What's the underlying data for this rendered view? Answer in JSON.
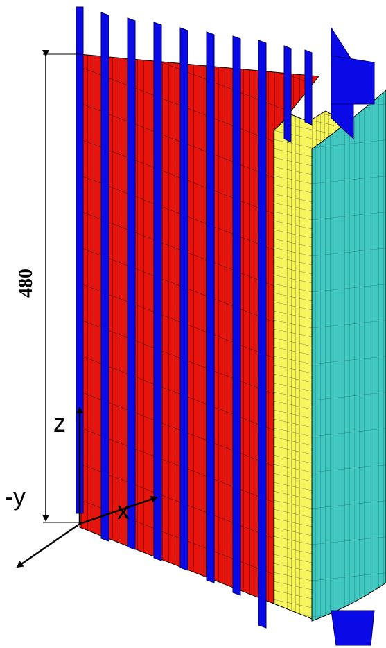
{
  "dimension": {
    "label": "480"
  },
  "axes": {
    "z": "z",
    "y": "-y",
    "x": "x"
  }
}
